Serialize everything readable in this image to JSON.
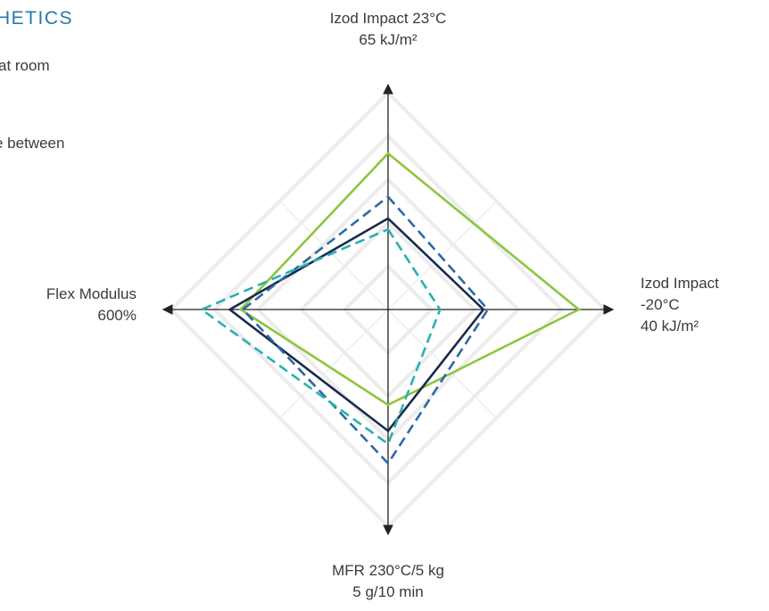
{
  "page": {
    "heading": "HETICS",
    "text_line_1": "at room",
    "text_line_2": "e between"
  },
  "chart_data": {
    "type": "radar",
    "title": "",
    "axes": [
      {
        "key": "top",
        "lines": [
          "Izod Impact 23°C",
          "65 kJ/m²"
        ]
      },
      {
        "key": "right",
        "lines": [
          "Izod Impact",
          "-20°C",
          "40 kJ/m²"
        ]
      },
      {
        "key": "bottom",
        "lines": [
          "MFR 230°C/5 kg",
          "5 g/10 min"
        ]
      },
      {
        "key": "left",
        "lines": [
          "Flex Modulus",
          "600%"
        ]
      }
    ],
    "grid_levels": 5,
    "scale_max": 1.0,
    "series": [
      {
        "color": "#8cc63f",
        "style": "solid",
        "values": {
          "top": 0.72,
          "right": 0.88,
          "bottom": 0.44,
          "left": 0.68
        }
      },
      {
        "color": "#1b2a4e",
        "style": "solid",
        "values": {
          "top": 0.42,
          "right": 0.44,
          "bottom": 0.56,
          "left": 0.73
        }
      },
      {
        "color": "#2a6aa5",
        "style": "dashed",
        "values": {
          "top": 0.52,
          "right": 0.46,
          "bottom": 0.71,
          "left": 0.67
        }
      },
      {
        "color": "#2ab0b0",
        "style": "dashed",
        "values": {
          "top": 0.37,
          "right": 0.24,
          "bottom": 0.62,
          "left": 0.86
        }
      }
    ]
  }
}
